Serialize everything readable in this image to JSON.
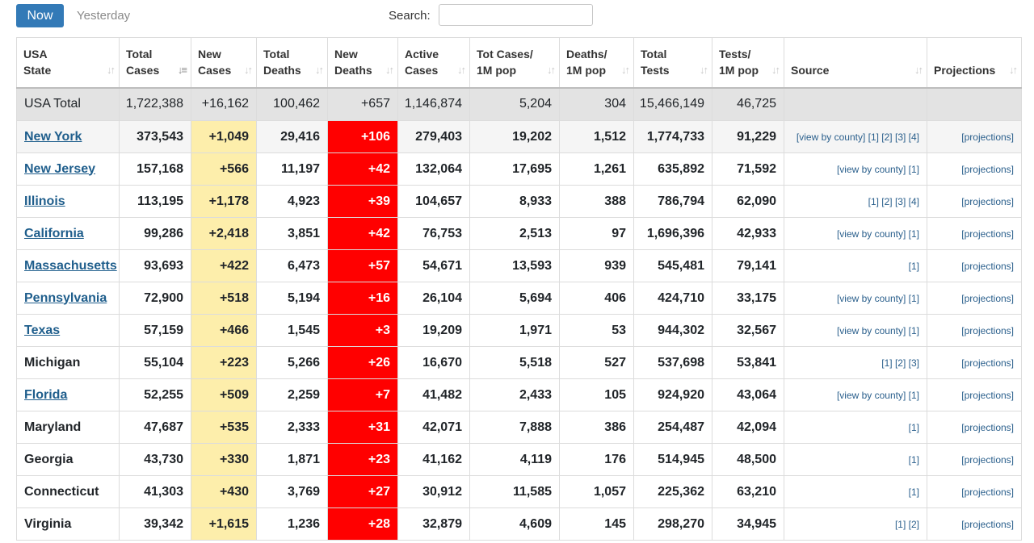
{
  "tabs": {
    "now": "Now",
    "yesterday": "Yesterday"
  },
  "search": {
    "label": "Search:",
    "value": ""
  },
  "columns": [
    {
      "line1": "USA",
      "line2": "State"
    },
    {
      "line1": "Total",
      "line2": "Cases"
    },
    {
      "line1": "New",
      "line2": "Cases"
    },
    {
      "line1": "Total",
      "line2": "Deaths"
    },
    {
      "line1": "New",
      "line2": "Deaths"
    },
    {
      "line1": "Active",
      "line2": "Cases"
    },
    {
      "line1": "Tot Cases/",
      "line2": "1M pop"
    },
    {
      "line1": "Deaths/",
      "line2": "1M pop"
    },
    {
      "line1": "Total",
      "line2": "Tests"
    },
    {
      "line1": "Tests/",
      "line2": "1M pop"
    },
    {
      "line1": "",
      "line2": "Source"
    },
    {
      "line1": "",
      "line2": "Projections"
    }
  ],
  "colors": {
    "new_cases_bg": "#fdeeab",
    "new_deaths_bg": "#ff0000",
    "now_tab": "#337ab7",
    "link": "#1f5e8c"
  },
  "total": {
    "state": "USA Total",
    "total_cases": "1,722,388",
    "new_cases": "+16,162",
    "total_deaths": "100,462",
    "new_deaths": "+657",
    "active": "1,146,874",
    "cases_per_m": "5,204",
    "deaths_per_m": "304",
    "total_tests": "15,466,149",
    "tests_per_m": "46,725"
  },
  "rows": [
    {
      "state": "New York",
      "link": true,
      "total_cases": "373,543",
      "new_cases": "+1,049",
      "total_deaths": "29,416",
      "new_deaths": "+106",
      "active": "279,403",
      "cases_per_m": "19,202",
      "deaths_per_m": "1,512",
      "total_tests": "1,774,733",
      "tests_per_m": "91,229",
      "source": "[view by county] [1] [2] [3] [4]",
      "proj": "[projections]"
    },
    {
      "state": "New Jersey",
      "link": true,
      "total_cases": "157,168",
      "new_cases": "+566",
      "total_deaths": "11,197",
      "new_deaths": "+42",
      "active": "132,064",
      "cases_per_m": "17,695",
      "deaths_per_m": "1,261",
      "total_tests": "635,892",
      "tests_per_m": "71,592",
      "source": "[view by county] [1]",
      "proj": "[projections]"
    },
    {
      "state": "Illinois",
      "link": true,
      "total_cases": "113,195",
      "new_cases": "+1,178",
      "total_deaths": "4,923",
      "new_deaths": "+39",
      "active": "104,657",
      "cases_per_m": "8,933",
      "deaths_per_m": "388",
      "total_tests": "786,794",
      "tests_per_m": "62,090",
      "source": "[1] [2] [3] [4]",
      "proj": "[projections]"
    },
    {
      "state": "California",
      "link": true,
      "total_cases": "99,286",
      "new_cases": "+2,418",
      "total_deaths": "3,851",
      "new_deaths": "+42",
      "active": "76,753",
      "cases_per_m": "2,513",
      "deaths_per_m": "97",
      "total_tests": "1,696,396",
      "tests_per_m": "42,933",
      "source": "[view by county] [1]",
      "proj": "[projections]"
    },
    {
      "state": "Massachusetts",
      "link": true,
      "total_cases": "93,693",
      "new_cases": "+422",
      "total_deaths": "6,473",
      "new_deaths": "+57",
      "active": "54,671",
      "cases_per_m": "13,593",
      "deaths_per_m": "939",
      "total_tests": "545,481",
      "tests_per_m": "79,141",
      "source": "[1]",
      "proj": "[projections]"
    },
    {
      "state": "Pennsylvania",
      "link": true,
      "total_cases": "72,900",
      "new_cases": "+518",
      "total_deaths": "5,194",
      "new_deaths": "+16",
      "active": "26,104",
      "cases_per_m": "5,694",
      "deaths_per_m": "406",
      "total_tests": "424,710",
      "tests_per_m": "33,175",
      "source": "[view by county] [1]",
      "proj": "[projections]"
    },
    {
      "state": "Texas",
      "link": true,
      "total_cases": "57,159",
      "new_cases": "+466",
      "total_deaths": "1,545",
      "new_deaths": "+3",
      "active": "19,209",
      "cases_per_m": "1,971",
      "deaths_per_m": "53",
      "total_tests": "944,302",
      "tests_per_m": "32,567",
      "source": "[view by county] [1]",
      "proj": "[projections]"
    },
    {
      "state": "Michigan",
      "link": false,
      "total_cases": "55,104",
      "new_cases": "+223",
      "total_deaths": "5,266",
      "new_deaths": "+26",
      "active": "16,670",
      "cases_per_m": "5,518",
      "deaths_per_m": "527",
      "total_tests": "537,698",
      "tests_per_m": "53,841",
      "source": "[1] [2] [3]",
      "proj": "[projections]"
    },
    {
      "state": "Florida",
      "link": true,
      "total_cases": "52,255",
      "new_cases": "+509",
      "total_deaths": "2,259",
      "new_deaths": "+7",
      "active": "41,482",
      "cases_per_m": "2,433",
      "deaths_per_m": "105",
      "total_tests": "924,920",
      "tests_per_m": "43,064",
      "source": "[view by county] [1]",
      "proj": "[projections]"
    },
    {
      "state": "Maryland",
      "link": false,
      "total_cases": "47,687",
      "new_cases": "+535",
      "total_deaths": "2,333",
      "new_deaths": "+31",
      "active": "42,071",
      "cases_per_m": "7,888",
      "deaths_per_m": "386",
      "total_tests": "254,487",
      "tests_per_m": "42,094",
      "source": "[1]",
      "proj": "[projections]"
    },
    {
      "state": "Georgia",
      "link": false,
      "total_cases": "43,730",
      "new_cases": "+330",
      "total_deaths": "1,871",
      "new_deaths": "+23",
      "active": "41,162",
      "cases_per_m": "4,119",
      "deaths_per_m": "176",
      "total_tests": "514,945",
      "tests_per_m": "48,500",
      "source": "[1]",
      "proj": "[projections]"
    },
    {
      "state": "Connecticut",
      "link": false,
      "total_cases": "41,303",
      "new_cases": "+430",
      "total_deaths": "3,769",
      "new_deaths": "+27",
      "active": "30,912",
      "cases_per_m": "11,585",
      "deaths_per_m": "1,057",
      "total_tests": "225,362",
      "tests_per_m": "63,210",
      "source": "[1]",
      "proj": "[projections]"
    },
    {
      "state": "Virginia",
      "link": false,
      "total_cases": "39,342",
      "new_cases": "+1,615",
      "total_deaths": "1,236",
      "new_deaths": "+28",
      "active": "32,879",
      "cases_per_m": "4,609",
      "deaths_per_m": "145",
      "total_tests": "298,270",
      "tests_per_m": "34,945",
      "source": "[1] [2]",
      "proj": "[projections]"
    }
  ]
}
